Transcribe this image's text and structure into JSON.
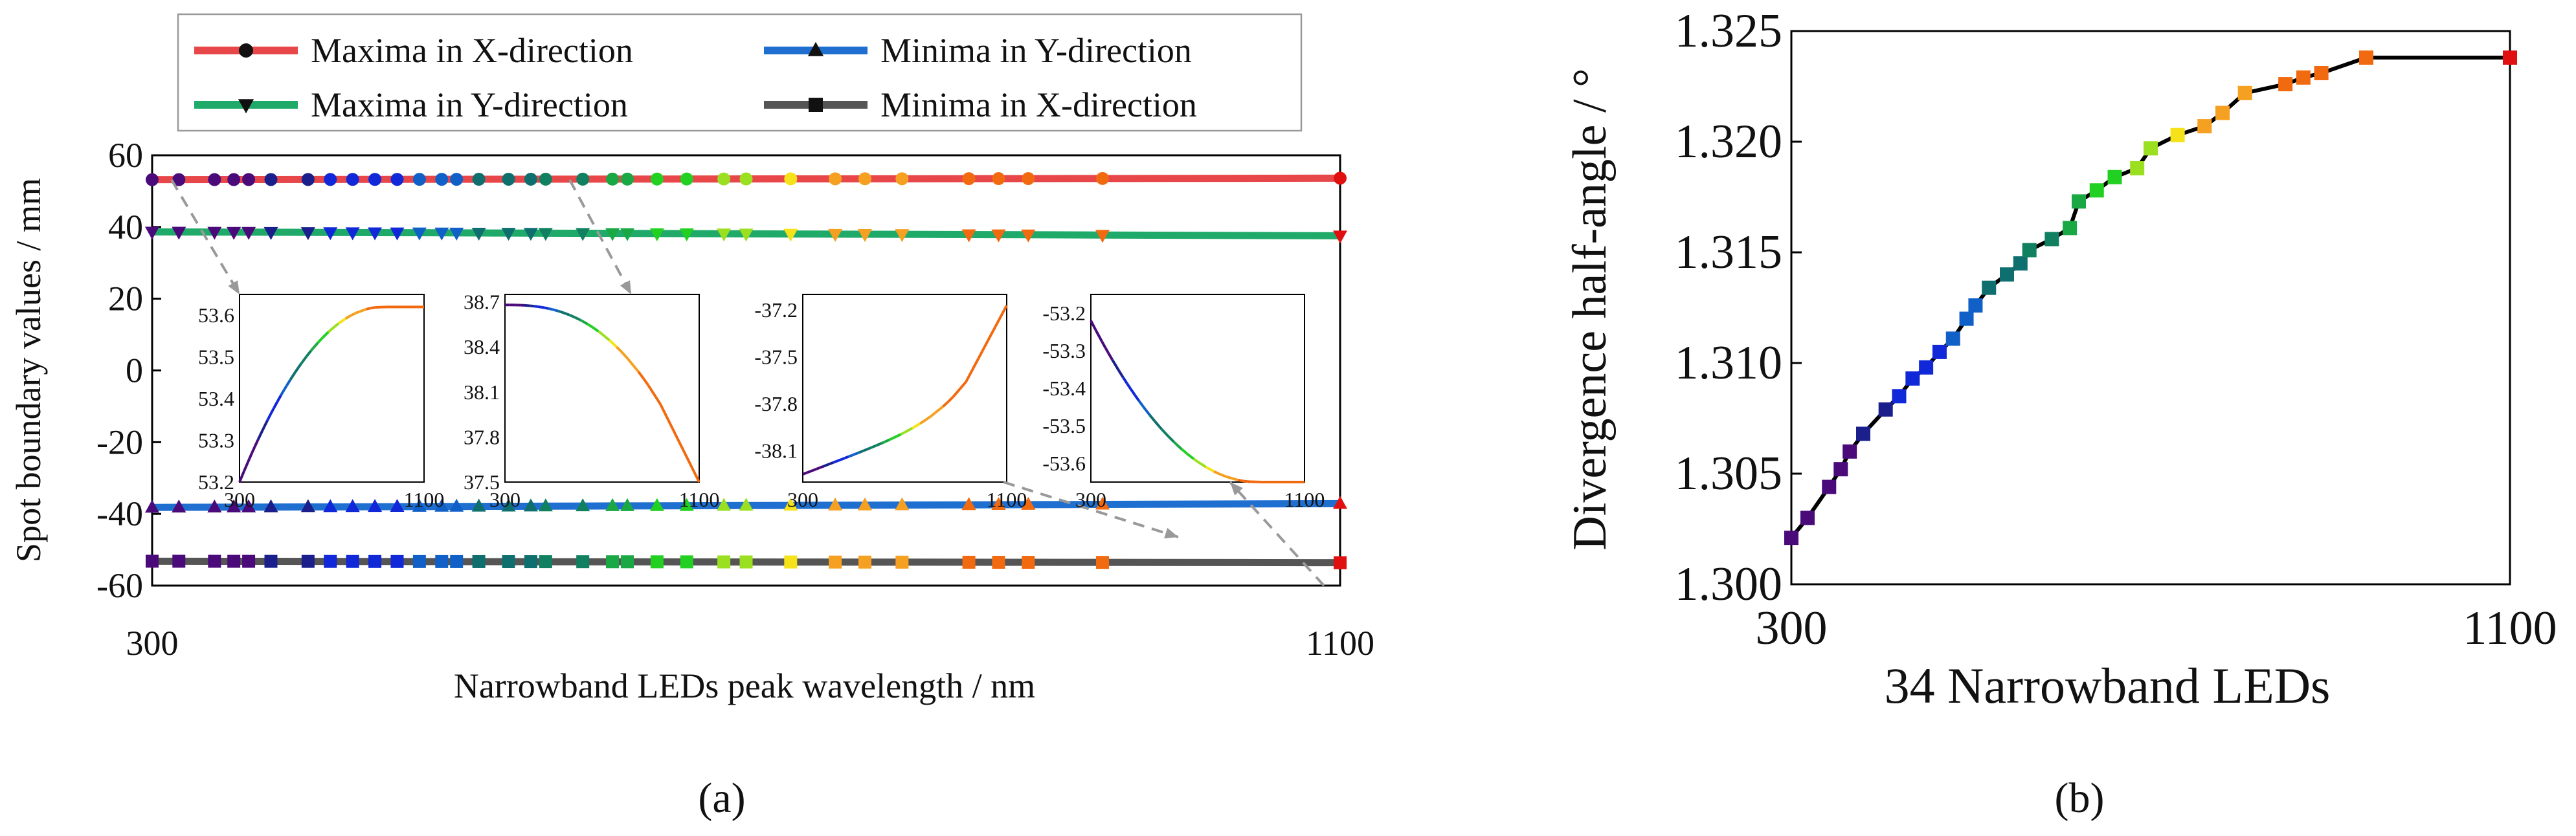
{
  "chart_data": [
    {
      "type": "line",
      "panel_label": "(a)",
      "xlabel": "Narrowband LEDs peak wavelength / nm",
      "ylabel": "Spot boundary values / mm",
      "xlim": [
        300,
        1100
      ],
      "ylim": [
        -60,
        60
      ],
      "x_ticks": [
        "300",
        "1100"
      ],
      "y_ticks": [
        "60",
        "40",
        "20",
        "0",
        "-20",
        "-40",
        "-60"
      ],
      "legend_position": "top",
      "legend_columns": 2,
      "led_wavelengths": [
        300,
        318,
        342,
        355,
        365,
        380,
        405,
        420,
        435,
        450,
        465,
        480,
        495,
        505,
        520,
        540,
        555,
        565,
        590,
        610,
        620,
        640,
        660,
        685,
        700,
        730,
        760,
        780,
        805,
        850,
        870,
        890,
        940,
        1100
      ],
      "series": [
        {
          "name": "Maxima in X-direction",
          "color": "#e8474a",
          "marker": "circle",
          "values_summary": [
            53.2,
            53.6
          ],
          "x": [
            300,
            1100
          ],
          "y": [
            53.2,
            53.62
          ]
        },
        {
          "name": "Maxima in Y-direction",
          "color": "#1faa6a",
          "marker": "triangle-down",
          "x": [
            300,
            1100
          ],
          "y": [
            38.65,
            37.55
          ]
        },
        {
          "name": "Minima in Y-direction",
          "color": "#1f6fd0",
          "marker": "triangle-up",
          "x": [
            300,
            1100
          ],
          "y": [
            -38.2,
            -37.15
          ]
        },
        {
          "name": "Minima in X-direction",
          "color": "#555555",
          "marker": "square",
          "x": [
            300,
            1100
          ],
          "y": [
            -53.2,
            -53.62
          ]
        }
      ],
      "insets": [
        {
          "series": "Maxima in X-direction",
          "x_ticks": [
            "300",
            "1100"
          ],
          "y_ticks": [
            "53.6",
            "53.5",
            "53.4",
            "53.3",
            "53.2"
          ],
          "ylim": [
            53.2,
            53.65
          ]
        },
        {
          "series": "Maxima in Y-direction",
          "x_ticks": [
            "300",
            "1100"
          ],
          "y_ticks": [
            "38.7",
            "38.4",
            "38.1",
            "37.8",
            "37.5"
          ],
          "ylim": [
            37.5,
            38.75
          ]
        },
        {
          "series": "Minima in Y-direction",
          "x_ticks": [
            "300",
            "1100"
          ],
          "y_ticks": [
            "-37.2",
            "-37.5",
            "-37.8",
            "-38.1"
          ],
          "ylim": [
            -38.3,
            -37.1
          ]
        },
        {
          "series": "Minima in X-direction",
          "x_ticks": [
            "300",
            "1100"
          ],
          "y_ticks": [
            "-53.2",
            "-53.3",
            "-53.4",
            "-53.5",
            "-53.6"
          ],
          "ylim": [
            -53.65,
            -53.15
          ]
        }
      ]
    },
    {
      "type": "line",
      "panel_label": "(b)",
      "xlabel": "34 Narrowband LEDs",
      "ylabel": "Divergence half-angle / °",
      "xlim": [
        300,
        1100
      ],
      "ylim": [
        1.3,
        1.325
      ],
      "x_ticks": [
        "300",
        "1100"
      ],
      "y_ticks": [
        "1.325",
        "1.320",
        "1.315",
        "1.310",
        "1.305",
        "1.300"
      ],
      "marker": "square",
      "line_color": "#000000",
      "x": [
        300,
        318,
        342,
        355,
        365,
        380,
        405,
        420,
        435,
        450,
        465,
        480,
        495,
        505,
        520,
        540,
        555,
        565,
        590,
        610,
        620,
        640,
        660,
        685,
        700,
        730,
        760,
        780,
        805,
        850,
        870,
        890,
        940,
        1100
      ],
      "y": [
        1.3021,
        1.303,
        1.3044,
        1.3052,
        1.306,
        1.3068,
        1.3079,
        1.3085,
        1.3093,
        1.3098,
        1.3105,
        1.3111,
        1.312,
        1.3126,
        1.3134,
        1.314,
        1.3145,
        1.3151,
        1.3156,
        1.3161,
        1.3173,
        1.3178,
        1.3184,
        1.3188,
        1.3197,
        1.3203,
        1.3207,
        1.3213,
        1.3222,
        1.3226,
        1.3229,
        1.3231,
        1.3238,
        1.3238
      ]
    }
  ]
}
